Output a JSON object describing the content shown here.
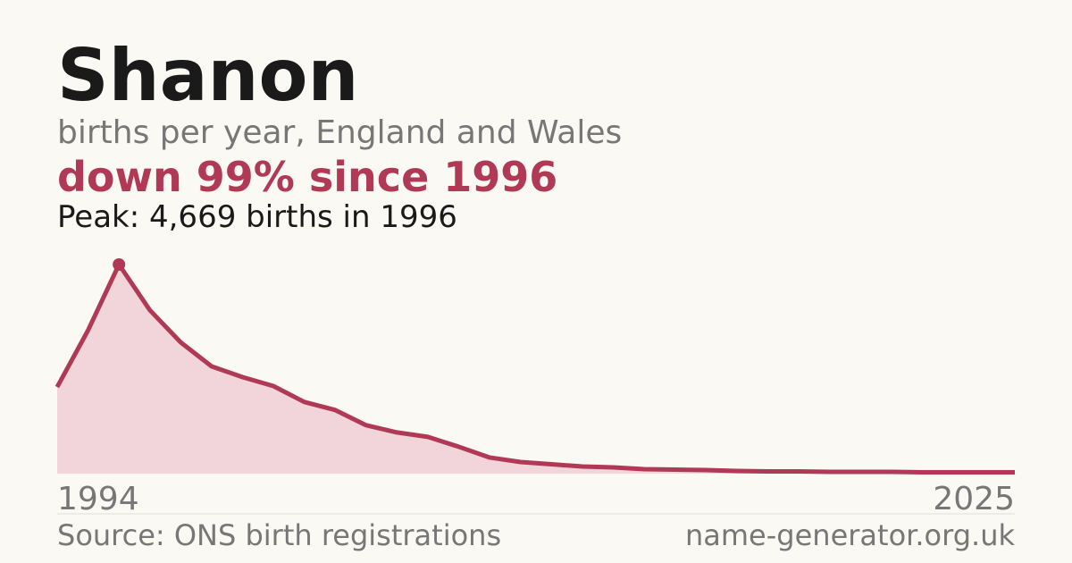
{
  "chart_data": {
    "type": "area",
    "title": "Shanon",
    "subtitle": "births per year, England and Wales",
    "headline": "down 99% since 1996",
    "annotation": "Peak: 4,669 births in 1996",
    "x": [
      1994,
      1995,
      1996,
      1997,
      1998,
      1999,
      2000,
      2001,
      2002,
      2003,
      2004,
      2005,
      2006,
      2007,
      2008,
      2009,
      2010,
      2011,
      2012,
      2013,
      2014,
      2015,
      2016,
      2017,
      2018,
      2019,
      2020,
      2021,
      2022,
      2023,
      2024,
      2025
    ],
    "values": [
      1935,
      3200,
      4669,
      3650,
      2930,
      2395,
      2155,
      1955,
      1600,
      1420,
      1080,
      920,
      820,
      600,
      360,
      260,
      210,
      160,
      140,
      100,
      90,
      80,
      60,
      50,
      50,
      40,
      40,
      40,
      30,
      30,
      30,
      30
    ],
    "color": "#b03a56",
    "fill": "#f2d5db",
    "xlim": [
      1994,
      2025
    ],
    "xticks": [
      1994,
      2025
    ],
    "ylim": [
      0,
      4669
    ]
  },
  "footer": {
    "source": "Source: ONS birth registrations",
    "website": "name-generator.org.uk"
  }
}
